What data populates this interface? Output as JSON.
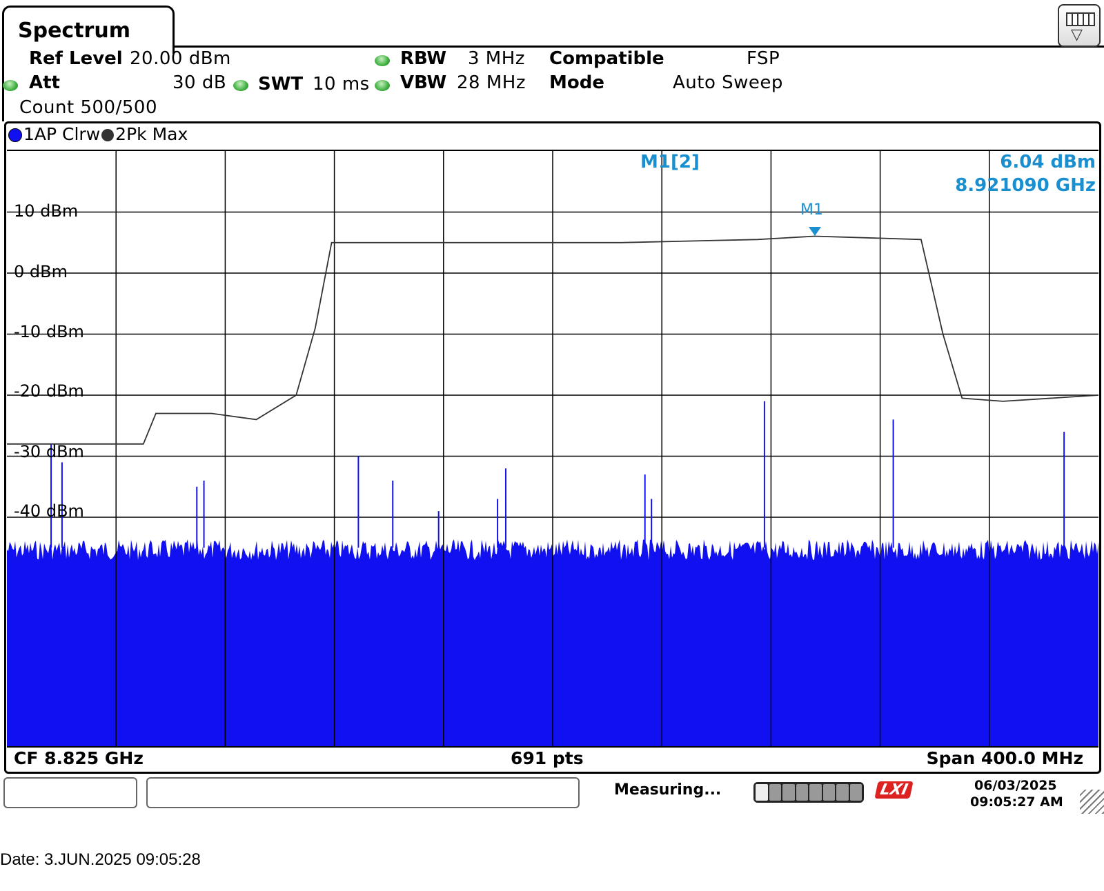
{
  "window": {
    "title": "Spectrum"
  },
  "settings": {
    "ref_level_label": "Ref Level",
    "ref_level_value": "20.00 dBm",
    "att_label": "Att",
    "att_value": "30 dB",
    "swt_label": "SWT",
    "swt_value": "10 ms",
    "rbw_label": "RBW",
    "rbw_value": "3 MHz",
    "vbw_label": "VBW",
    "vbw_value": "28 MHz",
    "compatible_label": "Compatible",
    "compatible_value": "FSP",
    "mode_label": "Mode",
    "mode_value": "Auto Sweep",
    "count": "Count 500/500"
  },
  "traces": {
    "trace1": "1AP Clrw",
    "trace1_color": "#1010f0",
    "trace2": "2Pk Max",
    "trace2_color": "#333333"
  },
  "marker": {
    "name": "M1[2]",
    "level": "6.04 dBm",
    "freq": "8.921090 GHz",
    "tag": "M1",
    "color": "#1a8fd0"
  },
  "axis": {
    "y_labels": [
      "10 dBm",
      "0 dBm",
      "-10 dBm",
      "-20 dBm",
      "-30 dBm",
      "-40 dBm"
    ]
  },
  "footer": {
    "cf": "CF 8.825 GHz",
    "pts": "691 pts",
    "span": "Span 400.0 MHz"
  },
  "status": {
    "measuring": "Measuring...",
    "date": "06/03/2025",
    "time": "09:05:27 AM",
    "lxi": "LXI"
  },
  "caption": "Date: 3.JUN.2025  09:05:28",
  "chart_data": {
    "type": "line",
    "title": "Spectrum",
    "xlabel": "",
    "ylabel": "",
    "ylim": [
      -80,
      20
    ],
    "x_center_ghz": 8.825,
    "x_span_mhz": 400,
    "y_ticks": [
      10,
      0,
      -10,
      -20,
      -30,
      -40
    ],
    "series": [
      {
        "name": "2Pk Max",
        "x": [
          8.625,
          8.675,
          8.6796,
          8.7,
          8.7164,
          8.731,
          8.738,
          8.744,
          8.76,
          8.8,
          8.85,
          8.9,
          8.921,
          8.96,
          8.968,
          8.975,
          8.99,
          9.025
        ],
        "y": [
          -28,
          -28,
          -23,
          -23,
          -24,
          -20,
          -9,
          5,
          5,
          5,
          5,
          5.5,
          6.04,
          5.5,
          -10,
          -20.5,
          -21,
          -20
        ]
      },
      {
        "name": "1AP Clrw",
        "x": [
          8.625,
          9.025
        ],
        "y": [
          -45,
          -45
        ]
      }
    ]
  }
}
